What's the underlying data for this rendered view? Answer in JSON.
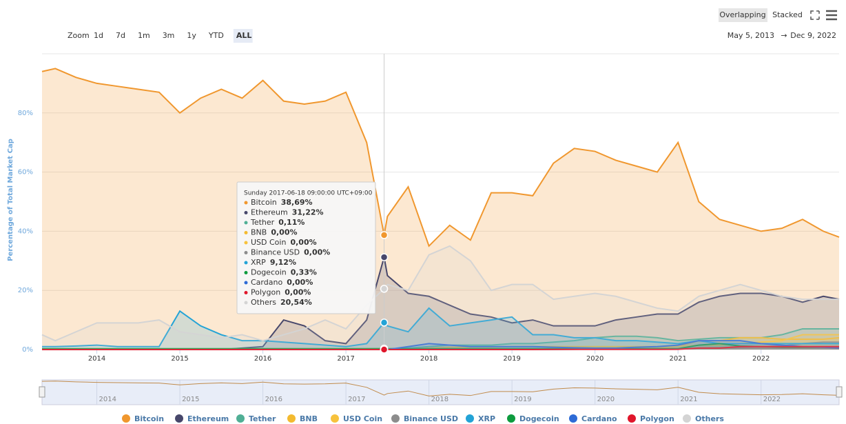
{
  "chart_data": {
    "type": "area",
    "y_axis_label": "Percentage of Total Market Cap",
    "grid": true,
    "x": [
      2013.34,
      2013.5,
      2013.75,
      2014,
      2014.25,
      2014.5,
      2014.75,
      2015,
      2015.25,
      2015.5,
      2015.75,
      2016,
      2016.25,
      2016.5,
      2016.75,
      2017,
      2017.25,
      2017.46,
      2017.5,
      2017.75,
      2018,
      2018.25,
      2018.5,
      2018.75,
      2019,
      2019.25,
      2019.5,
      2019.75,
      2020,
      2020.25,
      2020.5,
      2020.75,
      2021,
      2021.25,
      2021.5,
      2021.75,
      2022,
      2022.25,
      2022.5,
      2022.75,
      2022.94
    ],
    "xlim": [
      2013.34,
      2022.94
    ],
    "xticks": [
      2014,
      2015,
      2016,
      2017,
      2018,
      2019,
      2020,
      2021,
      2022
    ],
    "ylim": [
      0,
      100
    ],
    "yticks": [
      {
        "value": 0,
        "label": "0%"
      },
      {
        "value": 20,
        "label": "20%"
      },
      {
        "value": 40,
        "label": "40%"
      },
      {
        "value": 60,
        "label": "60%"
      },
      {
        "value": 80,
        "label": "80%"
      }
    ],
    "series": [
      {
        "name": "Bitcoin",
        "color": "#f0972e",
        "values": [
          94,
          95,
          92,
          90,
          89,
          88,
          87,
          80,
          85,
          88,
          85,
          91,
          84,
          83,
          84,
          87,
          70,
          38.69,
          45,
          55,
          35,
          42,
          37,
          53,
          53,
          52,
          63,
          68,
          67,
          64,
          62,
          60,
          70,
          50,
          44,
          42,
          40,
          41,
          44,
          40,
          38
        ]
      },
      {
        "name": "Ethereum",
        "color": "#47476b",
        "values": [
          0,
          0,
          0,
          0,
          0,
          0,
          0,
          0,
          0,
          0,
          0.5,
          1,
          10,
          8,
          3,
          2,
          10,
          31.22,
          25,
          19,
          18,
          15,
          12,
          11,
          9,
          10,
          8,
          8,
          8,
          10,
          11,
          12,
          12,
          16,
          18,
          19,
          19,
          18,
          16,
          18,
          17
        ]
      },
      {
        "name": "Tether",
        "color": "#50af95",
        "values": [
          0,
          0,
          0,
          0,
          0,
          0,
          0,
          0.1,
          0.1,
          0.1,
          0.1,
          0.1,
          0.1,
          0.1,
          0.1,
          0.1,
          0.1,
          0.11,
          0.2,
          0.5,
          1,
          1.5,
          1.5,
          1.5,
          2,
          2,
          2.5,
          3,
          4,
          4.5,
          4.5,
          4,
          3,
          3.5,
          4,
          4,
          4,
          5,
          7,
          7,
          7
        ]
      },
      {
        "name": "BNB",
        "color": "#f3ba2f",
        "values": [
          0,
          0,
          0,
          0,
          0,
          0,
          0,
          0,
          0,
          0,
          0,
          0,
          0,
          0,
          0,
          0,
          0,
          0,
          0,
          0.2,
          0.5,
          0.8,
          0.8,
          0.8,
          1,
          1,
          1,
          1,
          1,
          1,
          1,
          1,
          1,
          3,
          3,
          4,
          4,
          3.5,
          3.5,
          3.5,
          4
        ]
      },
      {
        "name": "USD Coin",
        "color": "#f7c23c",
        "values": [
          0,
          0,
          0,
          0,
          0,
          0,
          0,
          0,
          0,
          0,
          0,
          0,
          0,
          0,
          0,
          0,
          0,
          0,
          0,
          0,
          0,
          0,
          0,
          0.1,
          0.1,
          0.1,
          0.2,
          0.2,
          0.3,
          0.3,
          0.4,
          0.5,
          1,
          1.5,
          1.5,
          2,
          2.5,
          3,
          5,
          5,
          5
        ]
      },
      {
        "name": "Binance USD",
        "color": "#8c8c8c",
        "values": [
          0,
          0,
          0,
          0,
          0,
          0,
          0,
          0,
          0,
          0,
          0,
          0,
          0,
          0,
          0,
          0,
          0,
          0,
          0,
          0,
          0,
          0,
          0,
          0,
          0,
          0,
          0,
          0.1,
          0.2,
          0.2,
          0.2,
          0.2,
          0.3,
          0.5,
          0.6,
          0.8,
          1,
          1.2,
          2,
          2.5,
          2.5
        ]
      },
      {
        "name": "XRP",
        "color": "#23a3d6",
        "values": [
          1,
          1,
          1.2,
          1.5,
          1,
          1,
          1,
          13,
          8,
          5,
          3,
          3,
          2.5,
          2,
          1.5,
          1,
          2,
          9.12,
          8,
          6,
          14,
          8,
          9,
          10,
          11,
          5,
          5,
          4,
          4,
          3,
          3,
          2.5,
          2,
          3,
          2,
          2,
          2,
          2,
          2,
          2,
          2
        ]
      },
      {
        "name": "Dogecoin",
        "color": "#0d9b3e",
        "values": [
          0.3,
          0.3,
          0.3,
          0.3,
          0.3,
          0.3,
          0.3,
          0.3,
          0.3,
          0.3,
          0.3,
          0.3,
          0.3,
          0.3,
          0.3,
          0.3,
          0.3,
          0.33,
          0.3,
          0.3,
          0.3,
          0.3,
          0.3,
          0.3,
          0.3,
          0.3,
          0.3,
          0.3,
          0.3,
          0.3,
          0.3,
          0.3,
          0.3,
          1.5,
          2,
          1.2,
          1,
          0.8,
          0.8,
          0.8,
          0.8
        ]
      },
      {
        "name": "Cardano",
        "color": "#2d6bd6",
        "values": [
          0,
          0,
          0,
          0,
          0,
          0,
          0,
          0,
          0,
          0,
          0,
          0,
          0,
          0,
          0,
          0,
          0,
          0,
          0,
          1,
          2,
          1.5,
          1,
          1,
          1,
          1,
          0.8,
          0.6,
          0.5,
          0.5,
          0.8,
          1,
          1.5,
          3,
          3,
          3,
          2,
          1.5,
          1,
          0.8,
          0.5
        ]
      },
      {
        "name": "Polygon",
        "color": "#e0162b",
        "values": [
          0,
          0,
          0,
          0,
          0,
          0,
          0,
          0,
          0,
          0,
          0,
          0,
          0,
          0,
          0,
          0,
          0,
          0,
          0,
          0,
          0,
          0,
          0,
          0,
          0,
          0,
          0.05,
          0.05,
          0.05,
          0.05,
          0.05,
          0.05,
          0.1,
          0.5,
          0.5,
          1,
          1,
          1,
          1,
          1,
          1
        ]
      },
      {
        "name": "Others",
        "color": "#d4d4d4",
        "values": [
          5,
          3,
          6,
          9,
          9,
          9,
          10,
          6,
          5,
          4,
          5,
          3,
          5,
          7,
          10,
          7,
          15,
          20.54,
          22,
          20,
          32,
          35,
          30,
          20,
          22,
          22,
          17,
          18,
          19,
          18,
          16,
          14,
          13,
          18,
          20,
          22,
          20,
          18,
          17,
          17,
          17
        ]
      }
    ],
    "tooltip": {
      "title": "Sunday 2017-06-18 09:00:00 UTC+09:00",
      "x_index": 17,
      "labels": [
        "38,69%",
        "31,22%",
        "0,11%",
        "0,00%",
        "0,00%",
        "0,00%",
        "9,12%",
        "0,33%",
        "0,00%",
        "0,00%",
        "20,54%"
      ]
    }
  },
  "ui": {
    "zoom_label": "Zoom",
    "zoom_buttons": [
      "1d",
      "7d",
      "1m",
      "3m",
      "1y",
      "YTD",
      "ALL"
    ],
    "modes": [
      "Overlapping",
      "Stacked"
    ],
    "range_start": "May 5, 2013",
    "range_arrow": "→",
    "range_end": "Dec 9, 2022"
  }
}
